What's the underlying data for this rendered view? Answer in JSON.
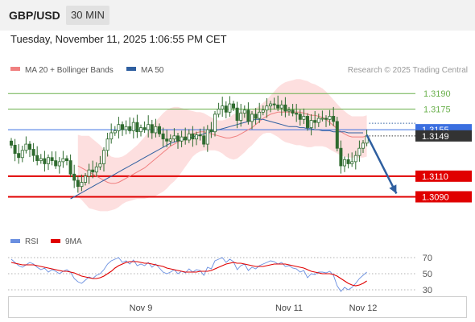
{
  "header": {
    "pair": "GBP/USD",
    "timeframe": "30 MIN",
    "timestamp": "Tuesday, November 11, 2025 1:06:55 PM CET"
  },
  "legend": {
    "ma20_label": "MA 20 + Bollinger Bands",
    "ma50_label": "MA 50",
    "credit": "Research © 2025 Trading Central",
    "rsi_label": "RSI",
    "ma9_label": "9MA"
  },
  "colors": {
    "ma20": "#f08080",
    "ma50": "#2f5fa0",
    "band_fill": "#fdd9d9",
    "candle": "#2f6b2f",
    "resistance": "#6ab04c",
    "pivot": "#3b6fe0",
    "support": "#e00000",
    "current": "#333333",
    "arrow": "#2f5fa0",
    "rsi": "#6a8fe0",
    "rsi_ma": "#e00000"
  },
  "chart_data": [
    {
      "type": "candlestick",
      "ylim": [
        1.3074,
        1.3205
      ],
      "levels": [
        {
          "label": "1.3190",
          "value": 1.319,
          "kind": "resistance"
        },
        {
          "label": "1.3175",
          "value": 1.3175,
          "kind": "resistance"
        },
        {
          "label": "1.3155",
          "value": 1.3155,
          "kind": "pivot"
        },
        {
          "label": "1.3149",
          "value": 1.3149,
          "kind": "current"
        },
        {
          "label": "1.3110",
          "value": 1.311,
          "kind": "support"
        },
        {
          "label": "1.3090",
          "value": 1.309,
          "kind": "support"
        }
      ],
      "x_ticks": [
        {
          "label": "Nov 9",
          "index": 35
        },
        {
          "label": "Nov 11",
          "index": 75
        },
        {
          "label": "Nov 12",
          "index": 95
        }
      ],
      "close": [
        1.314,
        1.3132,
        1.3128,
        1.3135,
        1.3141,
        1.3136,
        1.313,
        1.3125,
        1.3127,
        1.3122,
        1.3128,
        1.3125,
        1.312,
        1.3124,
        1.3127,
        1.3125,
        1.3112,
        1.3106,
        1.31,
        1.3104,
        1.311,
        1.3116,
        1.3114,
        1.3119,
        1.3122,
        1.3135,
        1.3146,
        1.3152,
        1.3154,
        1.316,
        1.3155,
        1.3158,
        1.3154,
        1.3162,
        1.3153,
        1.3157,
        1.3155,
        1.316,
        1.3152,
        1.3158,
        1.3151,
        1.3146,
        1.3144,
        1.3146,
        1.3149,
        1.3144,
        1.3148,
        1.3145,
        1.3151,
        1.3146,
        1.315,
        1.3149,
        1.3141,
        1.3155,
        1.3153,
        1.317,
        1.3175,
        1.3178,
        1.3172,
        1.318,
        1.3176,
        1.3164,
        1.3171,
        1.3174,
        1.3163,
        1.317,
        1.3166,
        1.3172,
        1.3174,
        1.3178,
        1.318,
        1.3179,
        1.3176,
        1.3179,
        1.3173,
        1.3174,
        1.3171,
        1.317,
        1.3165,
        1.3168,
        1.3157,
        1.3164,
        1.3162,
        1.3166,
        1.3166,
        1.3165,
        1.3168,
        1.3163,
        1.3137,
        1.312,
        1.3126,
        1.3122,
        1.3124,
        1.313,
        1.3137,
        1.3142,
        1.3149
      ],
      "ma20": [
        1.312,
        1.3118,
        1.3116,
        1.3114,
        1.3112,
        1.311,
        1.3108,
        1.3106,
        1.3104,
        1.3103,
        1.3103,
        1.3104,
        1.3106,
        1.3108,
        1.311,
        1.3112,
        1.3114,
        1.3116,
        1.3118,
        1.3121,
        1.3124,
        1.3127,
        1.313,
        1.3133,
        1.3136,
        1.3139,
        1.3141,
        1.3143,
        1.3145,
        1.3147,
        1.3149,
        1.3151,
        1.3152,
        1.3153,
        1.3153,
        1.3152,
        1.3151,
        1.315,
        1.3149,
        1.3148,
        1.3147,
        1.3147,
        1.3148,
        1.3149,
        1.3151,
        1.3153,
        1.3155,
        1.3157,
        1.316,
        1.3163,
        1.3166,
        1.3168,
        1.317,
        1.3171,
        1.3172,
        1.3172,
        1.3172,
        1.3172,
        1.3172,
        1.3172,
        1.3172,
        1.3171,
        1.317,
        1.3169,
        1.3169,
        1.3168,
        1.3167,
        1.3165,
        1.3162,
        1.3159,
        1.3156,
        1.3153,
        1.3151,
        1.3149,
        1.3148,
        1.3148,
        1.3148,
        1.3148,
        1.3149
      ],
      "ma20_start": 18,
      "band_width": [
        0.003,
        0.0031,
        0.0033,
        0.0035,
        0.0034,
        0.0033,
        0.0032,
        0.003,
        0.0028,
        0.0026,
        0.0025,
        0.0024,
        0.0023,
        0.0023,
        0.0024,
        0.0025,
        0.0026,
        0.0028,
        0.003,
        0.0032,
        0.0034,
        0.0036,
        0.0037,
        0.0038,
        0.0038,
        0.0037,
        0.0036,
        0.0034,
        0.0031,
        0.0028,
        0.0025,
        0.0022,
        0.002,
        0.0019,
        0.0018,
        0.0017,
        0.0016,
        0.0015,
        0.0015,
        0.0016,
        0.0018,
        0.002,
        0.0022,
        0.0022,
        0.0021,
        0.002,
        0.0018,
        0.0017,
        0.0016,
        0.0015,
        0.0015,
        0.0016,
        0.0018,
        0.0021,
        0.0024,
        0.0027,
        0.0029,
        0.003,
        0.0031,
        0.0032,
        0.0032,
        0.0032,
        0.0032,
        0.0031,
        0.003,
        0.0029,
        0.0028,
        0.0027,
        0.0026,
        0.0025,
        0.0024,
        0.0023,
        0.0022,
        0.0021,
        0.002,
        0.002,
        0.002,
        0.002,
        0.002
      ],
      "ma50": [
        1.3088,
        1.309,
        1.3092,
        1.3094,
        1.3096,
        1.3098,
        1.31,
        1.3102,
        1.3104,
        1.3106,
        1.3108,
        1.311,
        1.3112,
        1.3114,
        1.3116,
        1.3118,
        1.312,
        1.3122,
        1.3124,
        1.3126,
        1.3128,
        1.313,
        1.3132,
        1.3134,
        1.3136,
        1.3138,
        1.314,
        1.3142,
        1.3143,
        1.3144,
        1.3145,
        1.3146,
        1.3147,
        1.3148,
        1.3149,
        1.315,
        1.3151,
        1.3152,
        1.3153,
        1.3154,
        1.3155,
        1.3156,
        1.3157,
        1.3158,
        1.3159,
        1.316,
        1.3161,
        1.3162,
        1.3163,
        1.3164,
        1.3165,
        1.3165,
        1.3165,
        1.3164,
        1.3163,
        1.3162,
        1.3161,
        1.316,
        1.3159,
        1.3158,
        1.3158,
        1.3158,
        1.3157,
        1.3157,
        1.3156,
        1.3156,
        1.3155,
        1.3155,
        1.3154,
        1.3154,
        1.3154,
        1.3153,
        1.3153,
        1.3153,
        1.3153,
        1.3152,
        1.3152,
        1.3152,
        1.3152,
        1.3152
      ],
      "ma50_start": 16,
      "projection": {
        "from_index": 96,
        "from_value": 1.315,
        "to_index": 104,
        "to_value": 1.309
      }
    },
    {
      "type": "line",
      "ylim": [
        20,
        80
      ],
      "levels": [
        {
          "label": "70",
          "value": 70
        },
        {
          "label": "50",
          "value": 50
        },
        {
          "label": "30",
          "value": 30
        }
      ],
      "series": [
        {
          "name": "RSI",
          "values": [
            68,
            64,
            60,
            58,
            61,
            64,
            62,
            58,
            55,
            57,
            52,
            55,
            53,
            50,
            53,
            55,
            52,
            44,
            40,
            38,
            42,
            46,
            44,
            48,
            50,
            55,
            62,
            66,
            68,
            70,
            64,
            66,
            62,
            67,
            60,
            62,
            60,
            64,
            58,
            62,
            57,
            52,
            50,
            52,
            55,
            50,
            53,
            51,
            56,
            52,
            55,
            54,
            48,
            58,
            56,
            66,
            68,
            70,
            64,
            68,
            65,
            55,
            60,
            62,
            54,
            58,
            56,
            60,
            62,
            64,
            66,
            65,
            62,
            64,
            59,
            60,
            57,
            56,
            52,
            54,
            45,
            50,
            49,
            52,
            52,
            51,
            53,
            48,
            35,
            28,
            33,
            30,
            33,
            38,
            44,
            48,
            52
          ]
        },
        {
          "name": "9MA",
          "values": [
            64,
            63,
            62,
            61,
            61,
            61,
            61,
            60,
            59,
            58,
            57,
            56,
            55,
            54,
            53,
            53,
            52,
            51,
            49,
            47,
            46,
            45,
            44,
            44,
            45,
            47,
            50,
            53,
            57,
            60,
            62,
            64,
            65,
            65,
            65,
            64,
            63,
            63,
            62,
            61,
            60,
            59,
            57,
            56,
            55,
            54,
            53,
            52,
            52,
            52,
            52,
            53,
            53,
            53,
            54,
            56,
            58,
            60,
            62,
            63,
            64,
            63,
            63,
            62,
            61,
            60,
            59,
            59,
            59,
            60,
            61,
            62,
            62,
            62,
            62,
            61,
            60,
            59,
            58,
            57,
            55,
            53,
            52,
            51,
            50,
            50,
            50,
            49,
            47,
            44,
            41,
            38,
            36,
            35,
            36,
            38,
            41
          ]
        }
      ]
    }
  ]
}
